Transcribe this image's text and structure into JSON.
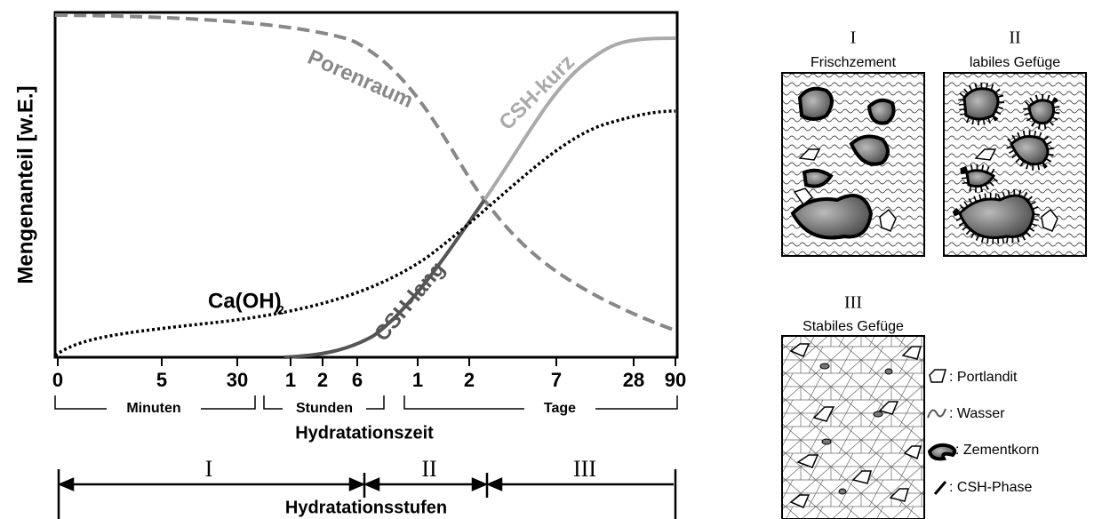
{
  "plot": {
    "y_axis_label": "Mengenanteil [w.E.]",
    "curve_labels": {
      "porenraum": "Porenraum",
      "csh_kurz": "CSH-kurz",
      "csh_lang": "CSH-lang",
      "caoh": "Ca(OH)",
      "caoh_sub": "2"
    },
    "x_ticks": [
      "0",
      "5",
      "30",
      "1",
      "2",
      "6",
      "1",
      "2",
      "7",
      "28",
      "90"
    ],
    "x_groups": [
      "Minuten",
      "Stunden",
      "Tage"
    ],
    "x_axis_label": "Hydratationszeit"
  },
  "stages": {
    "labels": [
      "I",
      "II",
      "III"
    ],
    "title": "Hydratationsstufen"
  },
  "panels": [
    {
      "numeral": "I",
      "title": "Frischzement"
    },
    {
      "numeral": "II",
      "title": "labiles Gefüge"
    },
    {
      "numeral": "III",
      "title": "Stabiles Gefüge"
    }
  ],
  "legend": [
    ": Portlandit",
    ": Wasser",
    ": Zementkorn",
    ": CSH-Phase"
  ]
}
